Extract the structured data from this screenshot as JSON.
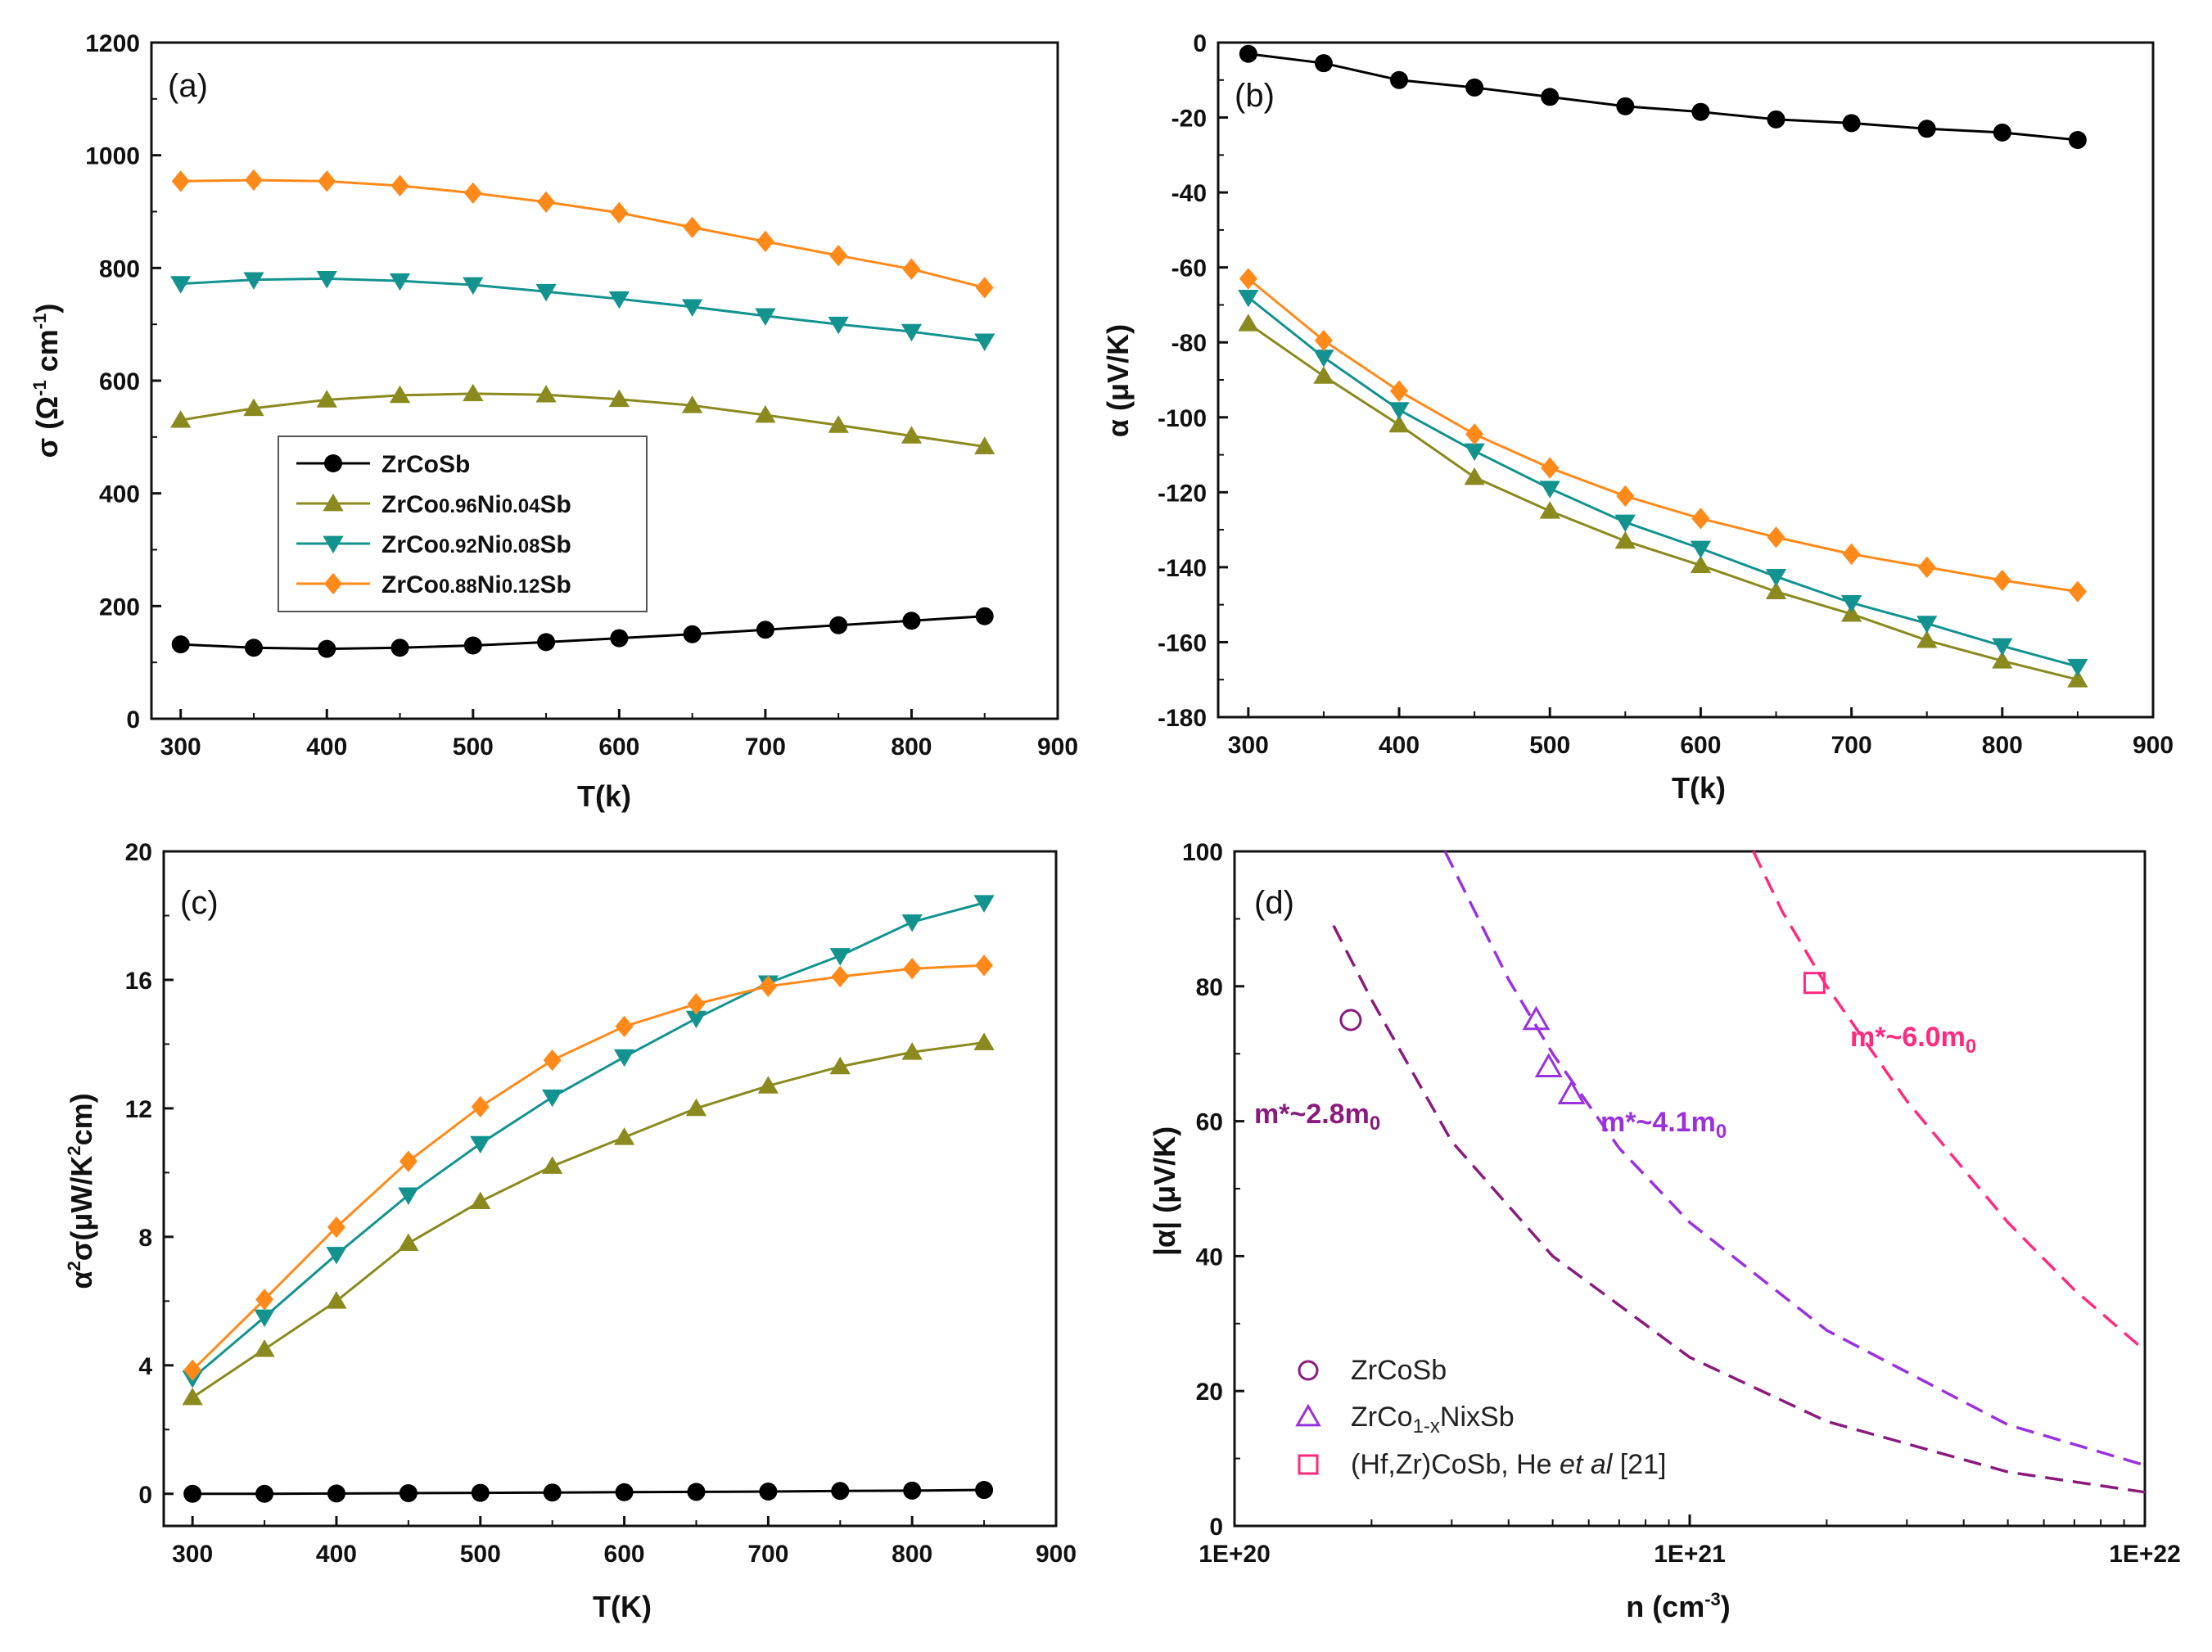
{
  "colors": {
    "ZrCoSb": "#000000",
    "Ni004": "#8a8a1e",
    "Ni008": "#12938f",
    "Ni012": "#ff8a1a",
    "fit28": "#8b1a7e",
    "fit41": "#9b30e0",
    "fit60": "#ff2a7f"
  },
  "chart_data": [
    {
      "id": "a",
      "type": "line",
      "panel_label": "(a)",
      "xlabel": "T(k)",
      "ylabel": {
        "base": "σ (Ω",
        "sup1": "-1",
        "mid": " cm",
        "sup2": "-1",
        "end": ")"
      },
      "xlim": [
        280,
        900
      ],
      "ylim": [
        0,
        1200
      ],
      "xticks": [
        "300",
        "400",
        "500",
        "600",
        "700",
        "800",
        "900"
      ],
      "yticks": [
        "0",
        "200",
        "400",
        "600",
        "800",
        "1000",
        "1200"
      ],
      "legend": [
        {
          "prefix": "ZrCoSb",
          "small": "",
          "mid": "",
          "small2": "",
          "suffix": ""
        },
        {
          "prefix": "ZrCo",
          "small": "0.96",
          "mid": "Ni",
          "small2": "0.04",
          "suffix": "Sb"
        },
        {
          "prefix": "ZrCo",
          "small": "0.92",
          "mid": "Ni",
          "small2": "0.08",
          "suffix": "Sb"
        },
        {
          "prefix": "ZrCo",
          "small": "0.88",
          "mid": "Ni",
          "small2": "0.12",
          "suffix": "Sb"
        }
      ],
      "x": [
        300,
        350,
        400,
        450,
        500,
        550,
        600,
        650,
        700,
        750,
        800,
        850
      ],
      "series": [
        {
          "name": "ZrCoSb",
          "marker": "circle",
          "values": [
            132,
            126,
            124,
            126,
            130,
            136,
            143,
            150,
            158,
            166,
            174,
            182
          ]
        },
        {
          "name": "ZrCo0.96Ni0.04Sb",
          "marker": "triangle-up",
          "values": [
            530,
            551,
            566,
            574,
            577,
            575,
            567,
            556,
            539,
            521,
            502,
            483
          ]
        },
        {
          "name": "ZrCo0.92Ni0.08Sb",
          "marker": "triangle-down",
          "values": [
            772,
            779,
            781,
            777,
            770,
            758,
            745,
            731,
            715,
            700,
            687,
            670
          ]
        },
        {
          "name": "ZrCo0.88Ni0.12Sb",
          "marker": "diamond",
          "values": [
            954,
            956,
            954,
            946,
            933,
            917,
            898,
            872,
            847,
            822,
            798,
            765
          ]
        }
      ]
    },
    {
      "id": "b",
      "type": "line",
      "panel_label": "(b)",
      "xlabel": "T(k)",
      "ylabel": {
        "base": "α (μV/K)"
      },
      "xlim": [
        280,
        900
      ],
      "ylim": [
        -180,
        0
      ],
      "xticks": [
        "300",
        "400",
        "500",
        "600",
        "700",
        "800",
        "900"
      ],
      "yticks": [
        "-180",
        "-160",
        "-140",
        "-120",
        "-100",
        "-80",
        "-60",
        "-40",
        "-20",
        "0"
      ],
      "x": [
        300,
        350,
        400,
        450,
        500,
        550,
        600,
        650,
        700,
        750,
        800,
        850
      ],
      "series": [
        {
          "name": "ZrCoSb",
          "marker": "circle",
          "values": [
            -3,
            -5.5,
            -10,
            -12,
            -14.5,
            -17,
            -18.5,
            -20.5,
            -21.5,
            -23,
            -24,
            -26
          ]
        },
        {
          "name": "ZrCo0.96Ni0.04Sb",
          "marker": "triangle-up",
          "values": [
            -75,
            -89,
            -102,
            -116,
            -125,
            -133,
            -139.5,
            -146.5,
            -152.5,
            -159.5,
            -165,
            -170
          ]
        },
        {
          "name": "ZrCo0.92Ni0.08Sb",
          "marker": "triangle-down",
          "values": [
            -68,
            -84,
            -98,
            -109,
            -119,
            -128,
            -135,
            -142.5,
            -149.5,
            -155,
            -161,
            -166.5
          ]
        },
        {
          "name": "ZrCo0.88Ni0.12Sb",
          "marker": "diamond",
          "values": [
            -63,
            -79.5,
            -93,
            -104.5,
            -113.5,
            -121,
            -127,
            -132,
            -136.5,
            -140,
            -143.5,
            -146.5
          ]
        }
      ]
    },
    {
      "id": "c",
      "type": "line",
      "panel_label": "(c)",
      "xlabel": "T(K)",
      "ylabel": {
        "base": "α",
        "sup1": "2",
        "mid": "σ(μW/K",
        "sup2": "2",
        "end": "cm)"
      },
      "xlim": [
        280,
        900
      ],
      "ylim": [
        -1,
        20
      ],
      "xticks": [
        "300",
        "400",
        "500",
        "600",
        "700",
        "800",
        "900"
      ],
      "yticks": [
        "0",
        "4",
        "8",
        "12",
        "16",
        "20"
      ],
      "x": [
        300,
        350,
        400,
        450,
        500,
        550,
        600,
        650,
        700,
        750,
        800,
        850
      ],
      "series": [
        {
          "name": "ZrCoSb",
          "marker": "circle",
          "values": [
            0.0,
            0.0,
            0.01,
            0.02,
            0.03,
            0.04,
            0.05,
            0.06,
            0.07,
            0.09,
            0.1,
            0.12
          ]
        },
        {
          "name": "ZrCo0.96Ni0.04Sb",
          "marker": "triangle-up",
          "values": [
            3.0,
            4.5,
            6.0,
            7.8,
            9.1,
            10.2,
            11.1,
            12.0,
            12.7,
            13.3,
            13.75,
            14.05
          ]
        },
        {
          "name": "ZrCo0.92Ni0.08Sb",
          "marker": "triangle-down",
          "values": [
            3.6,
            5.5,
            7.45,
            9.3,
            10.9,
            12.35,
            13.6,
            14.8,
            15.9,
            16.75,
            17.8,
            18.4
          ]
        },
        {
          "name": "ZrCo0.88Ni0.12Sb",
          "marker": "diamond",
          "values": [
            3.85,
            6.05,
            8.3,
            10.35,
            12.05,
            13.5,
            14.55,
            15.25,
            15.8,
            16.1,
            16.35,
            16.45
          ]
        }
      ]
    },
    {
      "id": "d",
      "type": "scatter",
      "panel_label": "(d)",
      "xlabel": {
        "base": "n (cm",
        "sup": "-3",
        "end": ")"
      },
      "ylabel": {
        "base": "|α|  (μV/K)"
      },
      "xscale": "log",
      "xlim": [
        1e+20,
        1e+22
      ],
      "ylim": [
        0,
        100
      ],
      "xticks": [
        "1E+20",
        "1E+21",
        "1E+22"
      ],
      "yticks": [
        "0",
        "20",
        "40",
        "60",
        "80",
        "100"
      ],
      "fit_curves": [
        {
          "label": {
            "base": "m*~2.8m",
            "sub": "0"
          },
          "m_eff": 2.8,
          "colorKey": "fit28",
          "n_points": [
            1.65e+20,
            2e+20,
            3e+20,
            5e+20,
            1e+21,
            2e+21,
            5e+21,
            1e+22
          ],
          "alpha": [
            89,
            78,
            57,
            40,
            25,
            15.5,
            8,
            5
          ]
        },
        {
          "label": {
            "base": "m*~4.1m",
            "sub": "0"
          },
          "m_eff": 4.1,
          "colorKey": "fit41",
          "n_points": [
            2.9e+20,
            4e+20,
            5e+20,
            7e+20,
            1e+21,
            2e+21,
            5e+21,
            1e+22
          ],
          "alpha": [
            100,
            81,
            70,
            56,
            45,
            29,
            15,
            9
          ]
        },
        {
          "label": {
            "base": "m*~6.0m",
            "sub": "0"
          },
          "m_eff": 6.0,
          "colorKey": "fit60",
          "n_points": [
            1.38e+21,
            1.6e+21,
            2e+21,
            3e+21,
            5e+21,
            7e+21,
            1e+22
          ],
          "alpha": [
            100,
            91,
            80,
            63,
            45,
            35,
            26
          ]
        }
      ],
      "points": [
        {
          "series": "ZrCoSb",
          "marker": "circle-open",
          "colorKey": "fit28",
          "n": [
            1.8e+20
          ],
          "alpha": [
            75
          ]
        },
        {
          "series": "ZrCo1-xNixSb",
          "marker": "triangle-open",
          "colorKey": "fit41",
          "n": [
            4.6e+20,
            4.9e+20,
            5.5e+20
          ],
          "alpha": [
            75,
            68,
            64
          ]
        },
        {
          "series": "(Hf,Zr)CoSb, He et al [21]",
          "marker": "square-open",
          "colorKey": "fit60",
          "n": [
            1.88e+21
          ],
          "alpha": [
            80.5
          ]
        }
      ],
      "legend": [
        {
          "text": "ZrCoSb",
          "marker": "circle-open",
          "colorKey": "fit28"
        },
        {
          "text": "ZrCo",
          "sub": "1-x",
          "text2": "NixSb",
          "marker": "triangle-open",
          "colorKey": "fit41"
        },
        {
          "text": "(Hf,Zr)CoSb, He ",
          "ital": "et al",
          "text2": " [21]",
          "marker": "square-open",
          "colorKey": "fit60"
        }
      ]
    }
  ]
}
